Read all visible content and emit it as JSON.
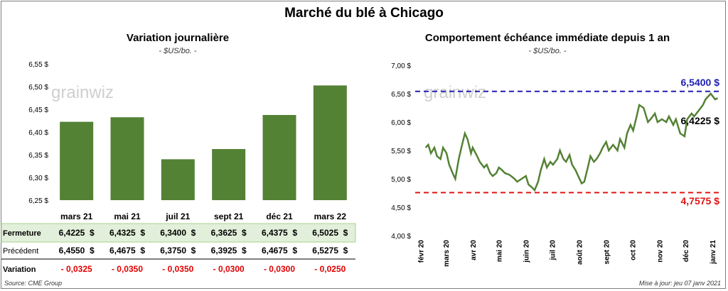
{
  "title": "Marché du blé à Chicago",
  "left": {
    "title": "Variation  journalière",
    "subtitle": "- $US/bo. -",
    "watermark": "grainwiz"
  },
  "right": {
    "title": "Comportement  échéance  immédiate  depuis  1  an",
    "subtitle": "- $US/bo. -",
    "watermark": "grainwiz",
    "high_label": "6,5400 $",
    "low_label": "4,7575 $",
    "last_label": "6,4225 $"
  },
  "footer": {
    "source": "Source: CME Group",
    "updated": "Mise à jour: jeu 07 janv 2021"
  },
  "table": {
    "rows": [
      {
        "label": "Fermeture",
        "values": [
          "6,4225  $",
          "6,4325  $",
          "6,3400  $",
          "6,3625  $",
          "6,4375  $",
          "6,5025  $"
        ]
      },
      {
        "label": "Précédent",
        "values": [
          "6,4550  $",
          "6,4675  $",
          "6,3750  $",
          "6,3925  $",
          "6,4675  $",
          "6,5275  $"
        ]
      },
      {
        "label": "Variation",
        "values": [
          "- 0,0325",
          "- 0,0350",
          "- 0,0350",
          "- 0,0300",
          "- 0,0300",
          "- 0,0250"
        ]
      }
    ]
  },
  "colors": {
    "bar": "#548235",
    "line": "#548235",
    "high": "#1f1fb4",
    "low": "#e11414",
    "fermeture_bg": "#e2efda",
    "variation": "#e00000"
  },
  "chart_data": [
    {
      "type": "bar",
      "categories": [
        "mars 21",
        "mai 21",
        "juil 21",
        "sept 21",
        "déc 21",
        "mars 22"
      ],
      "values": [
        6.4225,
        6.4325,
        6.34,
        6.3625,
        6.4375,
        6.5025
      ],
      "ylim": [
        6.25,
        6.55
      ],
      "yticks": [
        6.25,
        6.3,
        6.35,
        6.4,
        6.45,
        6.5,
        6.55
      ],
      "ytick_labels": [
        "6,25 $",
        "6,30 $",
        "6,35 $",
        "6,40 $",
        "6,45 $",
        "6,50 $",
        "6,55 $"
      ]
    },
    {
      "type": "line",
      "x": [
        "2020-02-07",
        "2020-02-10",
        "2020-02-13",
        "2020-02-17",
        "2020-02-20",
        "2020-02-24",
        "2020-02-27",
        "2020-03-02",
        "2020-03-05",
        "2020-03-09",
        "2020-03-12",
        "2020-03-16",
        "2020-03-19",
        "2020-03-23",
        "2020-03-26",
        "2020-03-30",
        "2020-04-01",
        "2020-04-06",
        "2020-04-09",
        "2020-04-14",
        "2020-04-17",
        "2020-04-21",
        "2020-04-24",
        "2020-04-28",
        "2020-05-01",
        "2020-05-05",
        "2020-05-08",
        "2020-05-12",
        "2020-05-15",
        "2020-05-19",
        "2020-05-22",
        "2020-05-27",
        "2020-06-01",
        "2020-06-04",
        "2020-06-08",
        "2020-06-11",
        "2020-06-15",
        "2020-06-18",
        "2020-06-22",
        "2020-06-25",
        "2020-06-29",
        "2020-07-02",
        "2020-07-07",
        "2020-07-10",
        "2020-07-14",
        "2020-07-17",
        "2020-07-21",
        "2020-07-24",
        "2020-07-28",
        "2020-07-31",
        "2020-08-04",
        "2020-08-07",
        "2020-08-11",
        "2020-08-14",
        "2020-08-18",
        "2020-08-21",
        "2020-08-25",
        "2020-08-28",
        "2020-09-01",
        "2020-09-04",
        "2020-09-09",
        "2020-09-14",
        "2020-09-17",
        "2020-09-22",
        "2020-09-25",
        "2020-09-29",
        "2020-10-02",
        "2020-10-06",
        "2020-10-09",
        "2020-10-14",
        "2020-10-19",
        "2020-10-22",
        "2020-10-27",
        "2020-10-30",
        "2020-11-04",
        "2020-11-09",
        "2020-11-12",
        "2020-11-17",
        "2020-11-20",
        "2020-11-25",
        "2020-11-30",
        "2020-12-03",
        "2020-12-08",
        "2020-12-11",
        "2020-12-16",
        "2020-12-21",
        "2020-12-24",
        "2020-12-30",
        "2021-01-04",
        "2021-01-07"
      ],
      "y": [
        5.55,
        5.6,
        5.45,
        5.55,
        5.4,
        5.35,
        5.55,
        5.45,
        5.25,
        5.1,
        5.0,
        5.35,
        5.55,
        5.8,
        5.7,
        5.45,
        5.55,
        5.4,
        5.3,
        5.2,
        5.25,
        5.1,
        5.05,
        5.1,
        5.2,
        5.15,
        5.1,
        5.08,
        5.05,
        5.0,
        4.95,
        5.0,
        5.05,
        4.9,
        4.85,
        4.8,
        4.95,
        5.15,
        5.35,
        5.2,
        5.3,
        5.25,
        5.35,
        5.5,
        5.35,
        5.3,
        5.42,
        5.25,
        5.15,
        5.05,
        4.92,
        4.95,
        5.2,
        5.4,
        5.3,
        5.35,
        5.45,
        5.55,
        5.65,
        5.5,
        5.6,
        5.5,
        5.7,
        5.55,
        5.8,
        5.95,
        5.85,
        6.1,
        6.3,
        6.25,
        6.0,
        6.05,
        6.15,
        6.0,
        6.05,
        6.0,
        6.1,
        5.95,
        6.05,
        5.8,
        5.75,
        6.05,
        6.15,
        6.1,
        6.2,
        6.3,
        6.4,
        6.5,
        6.4,
        6.4225
      ],
      "ylim": [
        4.0,
        7.0
      ],
      "yticks": [
        4.0,
        4.5,
        5.0,
        5.5,
        6.0,
        6.5,
        7.0
      ],
      "ytick_labels": [
        "4,00 $",
        "4,50 $",
        "5,00 $",
        "5,50 $",
        "6,00 $",
        "6,50 $",
        "7,00 $"
      ],
      "xticks": [
        "2020-02-01",
        "2020-03-01",
        "2020-04-01",
        "2020-05-01",
        "2020-06-01",
        "2020-07-01",
        "2020-08-01",
        "2020-09-01",
        "2020-10-01",
        "2020-11-01",
        "2020-12-01",
        "2021-01-01"
      ],
      "xtick_labels": [
        "févr 20",
        "mars 20",
        "avr 20",
        "mai 20",
        "juin 20",
        "juil 20",
        "août 20",
        "sept 20",
        "oct 20",
        "nov 20",
        "déc 20",
        "janv 21"
      ],
      "xlim": [
        "2020-01-26",
        "2021-01-09"
      ],
      "high": 6.54,
      "low": 4.7575
    }
  ]
}
